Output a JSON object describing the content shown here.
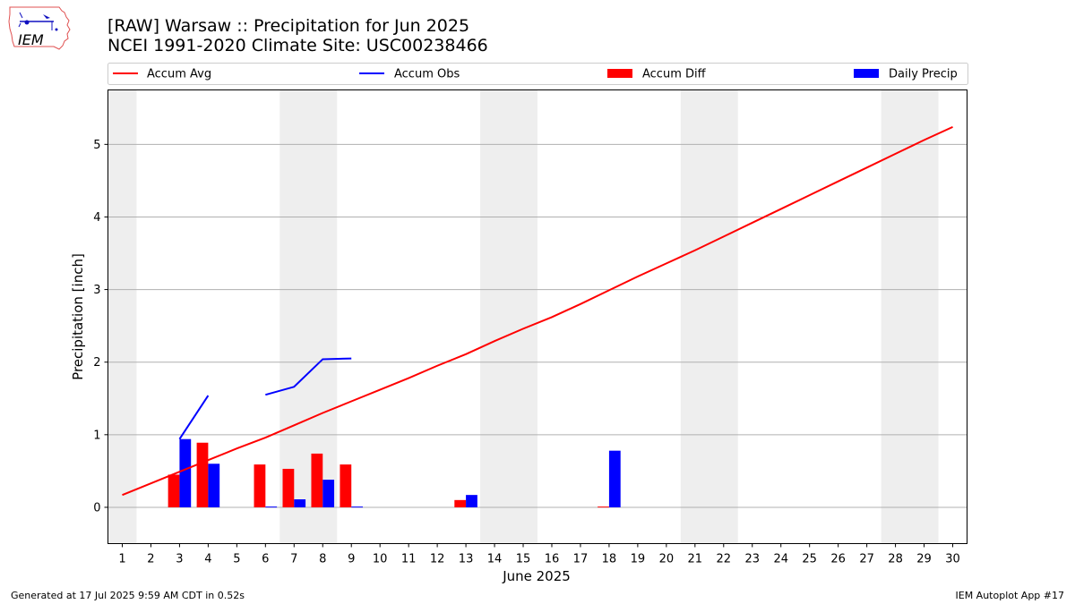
{
  "header": {
    "title_line1": "[RAW] Warsaw :: Precipitation for Jun 2025",
    "title_line2": "NCEI 1991-2020 Climate Site: USC00238466",
    "logo_text": "IEM"
  },
  "footer": {
    "generated": "Generated at 17 Jul 2025 9:59 AM CDT in 0.52s",
    "app": "IEM Autoplot App #17"
  },
  "colors": {
    "avg": "#ff0000",
    "obs": "#0000ff",
    "diff": "#ff0000",
    "daily": "#0000ff",
    "weekend": "#eeeeee",
    "grid": "#b0b0b0"
  },
  "chart_data": {
    "type": "bar",
    "xlabel": "June 2025",
    "ylabel": "Precipitation [inch]",
    "xlim": [
      0.5,
      30.5
    ],
    "ylim": [
      -0.5,
      5.75
    ],
    "yticks": [
      0,
      1,
      2,
      3,
      4,
      5
    ],
    "x": [
      1,
      2,
      3,
      4,
      5,
      6,
      7,
      8,
      9,
      10,
      11,
      12,
      13,
      14,
      15,
      16,
      17,
      18,
      19,
      20,
      21,
      22,
      23,
      24,
      25,
      26,
      27,
      28,
      29,
      30
    ],
    "legend": [
      "Accum Avg",
      "Accum Obs",
      "Accum Diff",
      "Daily Precip"
    ],
    "legend_placement": "top, above plot",
    "grid": "horizontal",
    "shaded_days": [
      [
        0.5,
        1.5
      ],
      [
        6.5,
        8.5
      ],
      [
        13.5,
        15.5
      ],
      [
        20.5,
        22.5
      ],
      [
        27.5,
        29.5
      ]
    ],
    "series": [
      {
        "name": "Accum Avg",
        "kind": "line",
        "values": [
          0.17,
          0.33,
          0.49,
          0.65,
          0.81,
          0.96,
          1.13,
          1.3,
          1.46,
          1.62,
          1.78,
          1.95,
          2.11,
          2.29,
          2.46,
          2.62,
          2.8,
          2.99,
          3.18,
          3.36,
          3.54,
          3.73,
          3.92,
          4.11,
          4.3,
          4.49,
          4.68,
          4.87,
          5.06,
          5.24
        ]
      },
      {
        "name": "Accum Obs",
        "kind": "line",
        "values": [
          null,
          null,
          0.94,
          1.54,
          null,
          1.55,
          1.66,
          2.04,
          2.05,
          null,
          null,
          null,
          null,
          null,
          null,
          null,
          null,
          null,
          null,
          null,
          null,
          null,
          null,
          null,
          null,
          null,
          null,
          null,
          null,
          null
        ]
      },
      {
        "name": "Accum Diff",
        "kind": "bar",
        "values": [
          0,
          0,
          0.45,
          0.89,
          0,
          0.59,
          0.53,
          0.74,
          0.59,
          0,
          0,
          0,
          0.1,
          0,
          0,
          0,
          0,
          0.01,
          0,
          0,
          0,
          0,
          0,
          0,
          0,
          0,
          0,
          0,
          0,
          0
        ]
      },
      {
        "name": "Daily Precip",
        "kind": "bar",
        "values": [
          0,
          0,
          0.94,
          0.6,
          0,
          0.01,
          0.11,
          0.38,
          0.01,
          0,
          0,
          0,
          0.17,
          0,
          0,
          0,
          0,
          0.78,
          0,
          0,
          0,
          0,
          0,
          0,
          0,
          0,
          0,
          0,
          0,
          0
        ]
      }
    ]
  }
}
